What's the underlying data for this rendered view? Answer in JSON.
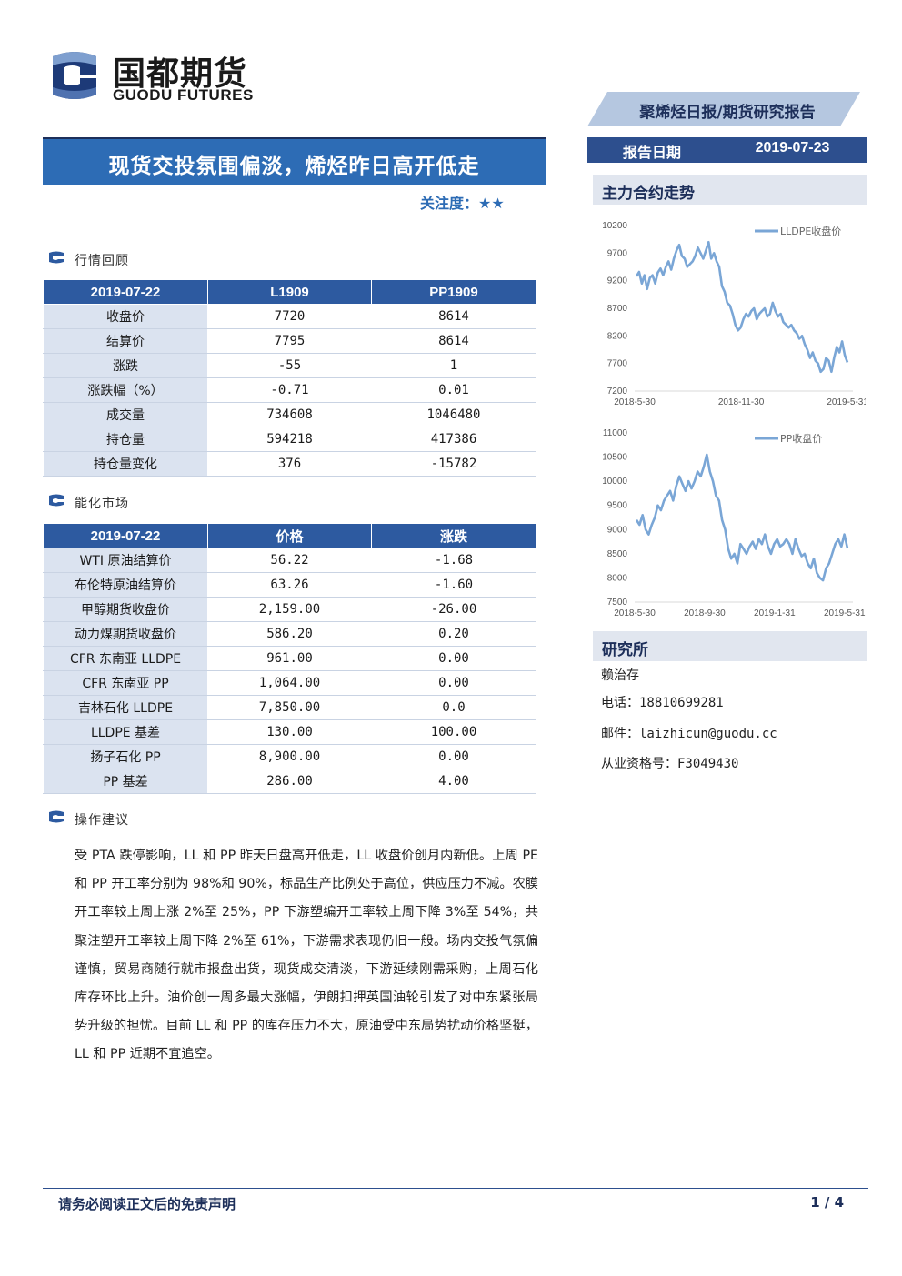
{
  "logo": {
    "name_cn": "国都期货",
    "name_en": "GUODU FUTURES"
  },
  "header": {
    "report_type": "聚烯烃日报/期货研究报告",
    "date_label": "报告日期",
    "date_value": "2019-07-23"
  },
  "title": "现货交投氛围偏淡，烯烃昨日高开低走",
  "focus": "关注度：★★",
  "sections": {
    "market_review": "行情回顾",
    "energy_market": "能化市场",
    "advice": "操作建议"
  },
  "table1": {
    "headers": [
      "2019-07-22",
      "L1909",
      "PP1909"
    ],
    "rows": [
      [
        "收盘价",
        "7720",
        "8614"
      ],
      [
        "结算价",
        "7795",
        "8614"
      ],
      [
        "涨跌",
        "-55",
        "1"
      ],
      [
        "涨跌幅（%）",
        "-0.71",
        "0.01"
      ],
      [
        "成交量",
        "734608",
        "1046480"
      ],
      [
        "持仓量",
        "594218",
        "417386"
      ],
      [
        "持仓量变化",
        "376",
        "-15782"
      ]
    ]
  },
  "table2": {
    "headers": [
      "2019-07-22",
      "价格",
      "涨跌"
    ],
    "rows": [
      [
        "WTI 原油结算价",
        "56.22",
        "-1.68"
      ],
      [
        "布伦特原油结算价",
        "63.26",
        "-1.60"
      ],
      [
        "甲醇期货收盘价",
        "2,159.00",
        "-26.00"
      ],
      [
        "动力煤期货收盘价",
        "586.20",
        "0.20"
      ],
      [
        "CFR 东南亚 LLDPE",
        "961.00",
        "0.00"
      ],
      [
        "CFR 东南亚 PP",
        "1,064.00",
        "0.00"
      ],
      [
        "吉林石化 LLDPE",
        "7,850.00",
        "0.0"
      ],
      [
        "LLDPE 基差",
        "130.00",
        "100.00"
      ],
      [
        "扬子石化 PP",
        "8,900.00",
        "0.00"
      ],
      [
        "PP 基差",
        "286.00",
        "4.00"
      ]
    ]
  },
  "advice_text": "受 PTA 跌停影响，LL 和 PP 昨天日盘高开低走，LL 收盘价创月内新低。上周 PE 和 PP 开工率分别为 98%和 90%，标品生产比例处于高位，供应压力不减。农膜开工率较上周上涨 2%至 25%，PP 下游塑编开工率较上周下降 3%至 54%，共聚注塑开工率较上周下降 2%至 61%，下游需求表现仍旧一般。场内交投气氛偏谨慎，贸易商随行就市报盘出货，现货成交清淡，下游延续刚需采购，上周石化库存环比上升。油价创一周多最大涨幅，伊朗扣押英国油轮引发了对中东紧张局势升级的担忧。目前 LL 和 PP 的库存压力不大，原油受中东局势扰动价格坚挺，LL 和 PP 近期不宜追空。",
  "side": {
    "trend_title": "主力合约走势",
    "research_title": "研究所",
    "analyst": "赖治存",
    "phone": "电话：18810699281",
    "email": "邮件：laizhicun@guodu.cc",
    "license": "从业资格号：F3049430"
  },
  "chart_data": [
    {
      "type": "line",
      "series": [
        {
          "name": "LLDPE收盘价",
          "values": [
            9280,
            9360,
            9150,
            9300,
            9050,
            9250,
            9300,
            9150,
            9350,
            9420,
            9300,
            9450,
            9550,
            9400,
            9600,
            9750,
            9850,
            9650,
            9600,
            9450,
            9500,
            9550,
            9650,
            9800,
            9700,
            9600,
            9750,
            9900,
            9600,
            9700,
            9550,
            9450,
            9100,
            9000,
            8800,
            8750,
            8600,
            8400,
            8300,
            8350,
            8500,
            8600,
            8550,
            8650,
            8700,
            8500,
            8600,
            8650,
            8700,
            8550,
            8600,
            8800,
            8650,
            8550,
            8600,
            8450,
            8400,
            8350,
            8400,
            8300,
            8250,
            8150,
            8200,
            8050,
            7950,
            7800,
            7900,
            7750,
            7700,
            7550,
            7600,
            7800,
            7750,
            7550,
            7800,
            8000,
            7900,
            8100,
            7850,
            7720
          ]
        }
      ],
      "x_ticks": [
        "2018-5-30",
        "2018-11-30",
        "2019-5-31"
      ],
      "y_ticks": [
        10200,
        9700,
        9200,
        8700,
        8200,
        7700,
        7200
      ],
      "ylim": [
        7200,
        10200
      ],
      "legend_position": "top-right"
    },
    {
      "type": "line",
      "series": [
        {
          "name": "PP收盘价",
          "values": [
            9200,
            9100,
            9300,
            9000,
            8900,
            9100,
            9250,
            9500,
            9400,
            9600,
            9700,
            9800,
            9600,
            9900,
            10100,
            9950,
            9800,
            10000,
            9850,
            10000,
            10200,
            10100,
            10300,
            10550,
            10200,
            10000,
            9700,
            9600,
            9200,
            9000,
            8600,
            8400,
            8500,
            8300,
            8700,
            8600,
            8500,
            8650,
            8750,
            8600,
            8800,
            8700,
            8900,
            8650,
            8500,
            8700,
            8800,
            8650,
            8700,
            8800,
            8700,
            8500,
            8800,
            8600,
            8450,
            8500,
            8300,
            8200,
            8400,
            8100,
            8000,
            7950,
            8200,
            8300,
            8500,
            8700,
            8800,
            8650,
            8900,
            8614
          ]
        }
      ],
      "x_ticks": [
        "2018-5-30",
        "2018-9-30",
        "2019-1-31",
        "2019-5-31"
      ],
      "y_ticks": [
        11000,
        10500,
        10000,
        9500,
        9000,
        8500,
        8000,
        7500
      ],
      "ylim": [
        7500,
        11000
      ],
      "legend_position": "top-right"
    }
  ],
  "footer": {
    "disclaimer": "请务必阅读正文后的免责声明",
    "page": "1 / 4"
  },
  "colors": {
    "brand_blue": "#2d6cb5",
    "dark_navy": "#1d2f5a",
    "line_blue": "#7aa6d6"
  }
}
